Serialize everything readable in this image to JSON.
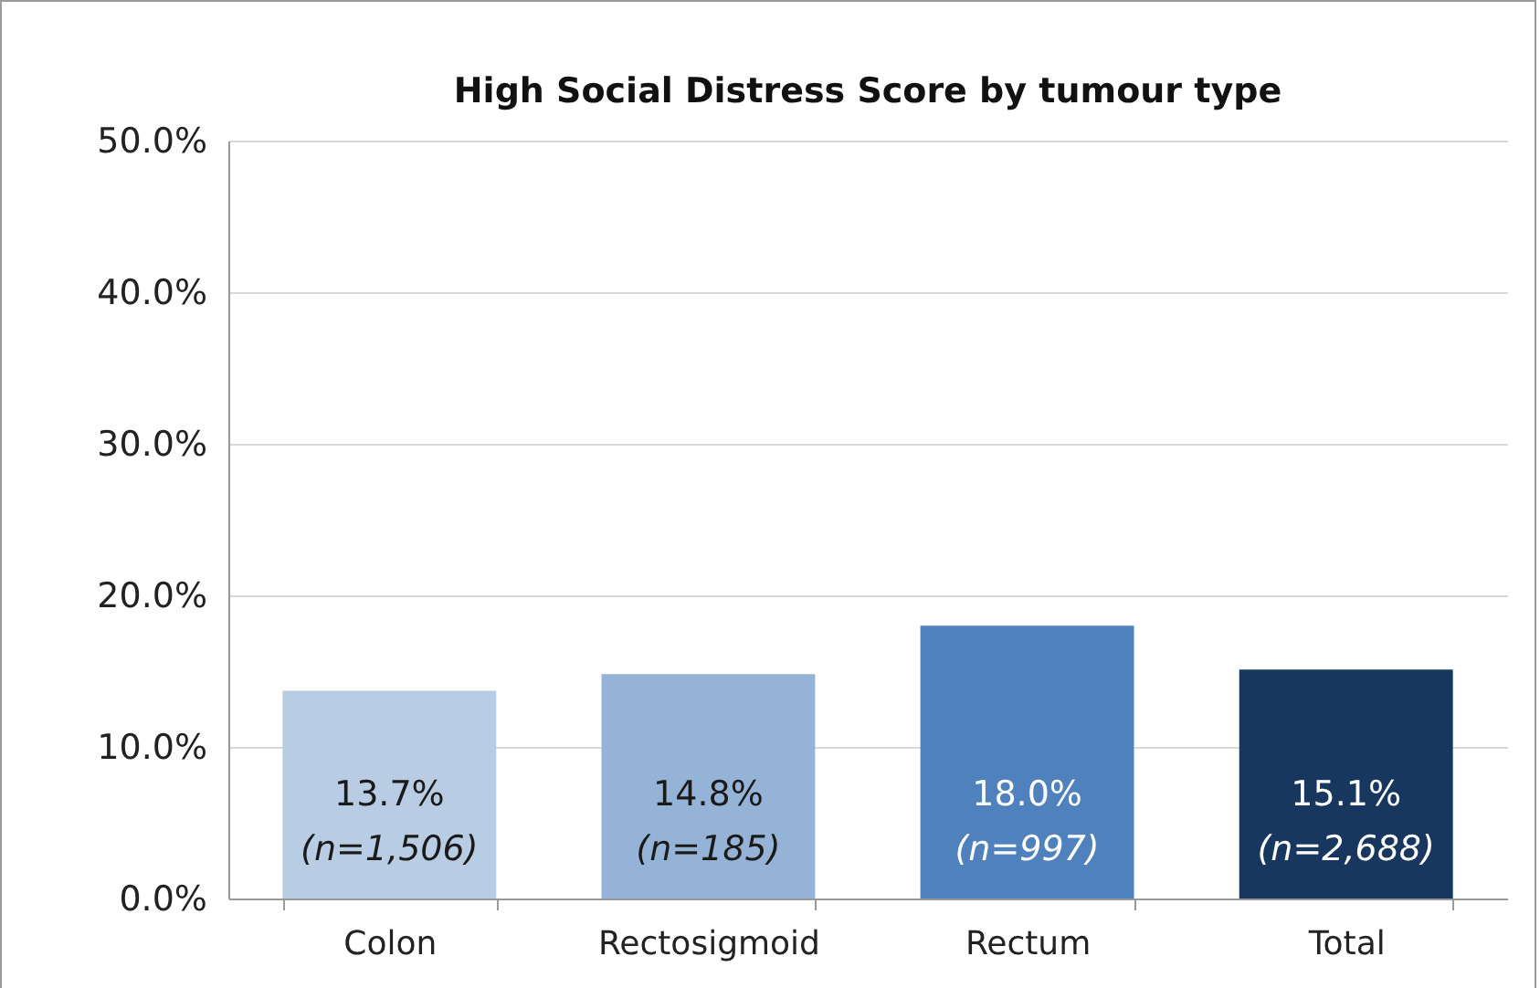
{
  "chart_data": {
    "type": "bar",
    "title": "High Social Distress Score by tumour type",
    "categories": [
      "Colon",
      "Rectosigmoid",
      "Rectum",
      "Total"
    ],
    "values": [
      13.7,
      14.8,
      18.0,
      15.1
    ],
    "colors": [
      "#b8cce4",
      "#95b3d7",
      "#4f81bd",
      "#17375e"
    ],
    "value_labels": [
      "13.7%\n(n=1,506)",
      "14.8%\n(n=185)",
      "18.0%\n(n=997)",
      "15.1%\n(n=2,688)"
    ],
    "ylim": [
      0,
      50
    ],
    "yticks": [
      {
        "value": 0,
        "label": "0.0%"
      },
      {
        "value": 10,
        "label": "10.0%"
      },
      {
        "value": 20,
        "label": "20.0%"
      },
      {
        "value": 30,
        "label": "30.0%"
      },
      {
        "value": 40,
        "label": "40.0%"
      },
      {
        "value": 50,
        "label": "50.0%"
      }
    ],
    "grid": "y"
  }
}
